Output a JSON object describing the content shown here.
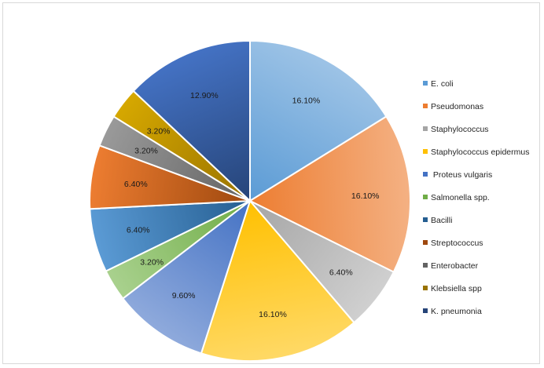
{
  "chart_data": {
    "type": "pie",
    "title": "",
    "categories": [
      "E. coli",
      "Pseudomonas",
      "Staphylococcus",
      "Staphylococcus epidermus",
      " Proteus vulgaris",
      "Salmonella spp.",
      "Bacilli",
      "Streptococcus",
      "Enterobacter",
      "Klebsiella spp",
      "K. pneumonia"
    ],
    "values": [
      16.1,
      16.1,
      6.4,
      16.1,
      9.6,
      3.2,
      6.4,
      6.4,
      3.2,
      3.2,
      12.9
    ],
    "value_labels": [
      "16.10%",
      "16.10%",
      "6.40%",
      "16.10%",
      "9.60%",
      "3.20%",
      "6.40%",
      "6.40%",
      "3.20%",
      "3.20%",
      "12.90%"
    ],
    "colors": [
      [
        "#9dc3e6",
        "#5b9bd5"
      ],
      [
        "#f4b183",
        "#ed7d31"
      ],
      [
        "#d0d0d0",
        "#a5a5a5"
      ],
      [
        "#ffd966",
        "#ffc000"
      ],
      [
        "#8faadc",
        "#4472c4"
      ],
      [
        "#a9d18e",
        "#70ad47"
      ],
      [
        "#5b9bd5",
        "#255e91"
      ],
      [
        "#ed7d31",
        "#9e480e"
      ],
      [
        "#9a9a9a",
        "#636363"
      ],
      [
        "#d6a800",
        "#997300"
      ],
      [
        "#4472c4",
        "#264478"
      ]
    ],
    "legend_position": "right"
  }
}
